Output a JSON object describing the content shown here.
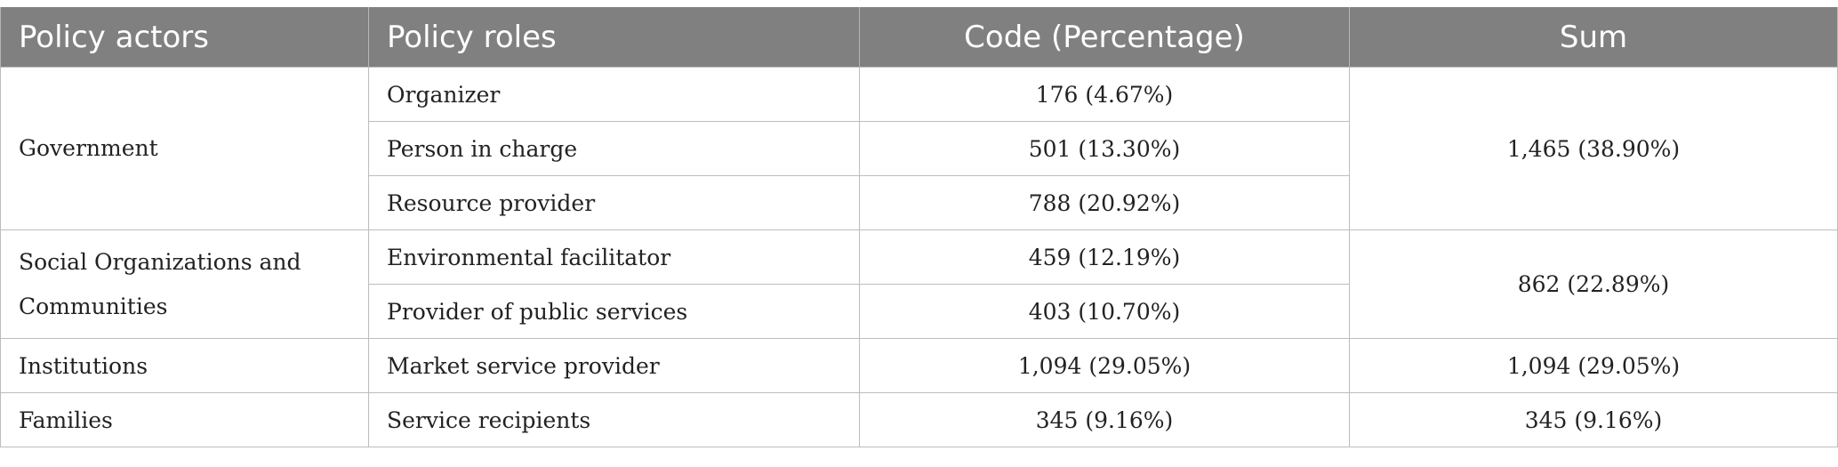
{
  "table": {
    "headers": {
      "actors": "Policy actors",
      "roles": "Policy roles",
      "code": "Code (Percentage)",
      "sum": "Sum"
    },
    "groups": [
      {
        "actor": "Government",
        "sum": "1,465 (38.90%)",
        "rows": [
          {
            "role": "Organizer",
            "code": "176 (4.67%)"
          },
          {
            "role": "Person in charge",
            "code": "501 (13.30%)"
          },
          {
            "role": "Resource provider",
            "code": "788 (20.92%)"
          }
        ]
      },
      {
        "actor": "Social Organizations and Communities",
        "sum": "862 (22.89%)",
        "rows": [
          {
            "role": "Environmental facilitator",
            "code": "459 (12.19%)"
          },
          {
            "role": "Provider of public services",
            "code": "403 (10.70%)"
          }
        ]
      },
      {
        "actor": "Institutions",
        "sum": "1,094 (29.05%)",
        "rows": [
          {
            "role": "Market service provider",
            "code": "1,094 (29.05%)"
          }
        ]
      },
      {
        "actor": "Families",
        "sum": "345 (9.16%)",
        "rows": [
          {
            "role": "Service recipients",
            "code": "345 (9.16%)"
          }
        ]
      }
    ],
    "colors": {
      "header_bg": "#808080",
      "header_text": "#ffffff",
      "grid_line": "#bdbdbd",
      "body_text": "#222222"
    }
  }
}
